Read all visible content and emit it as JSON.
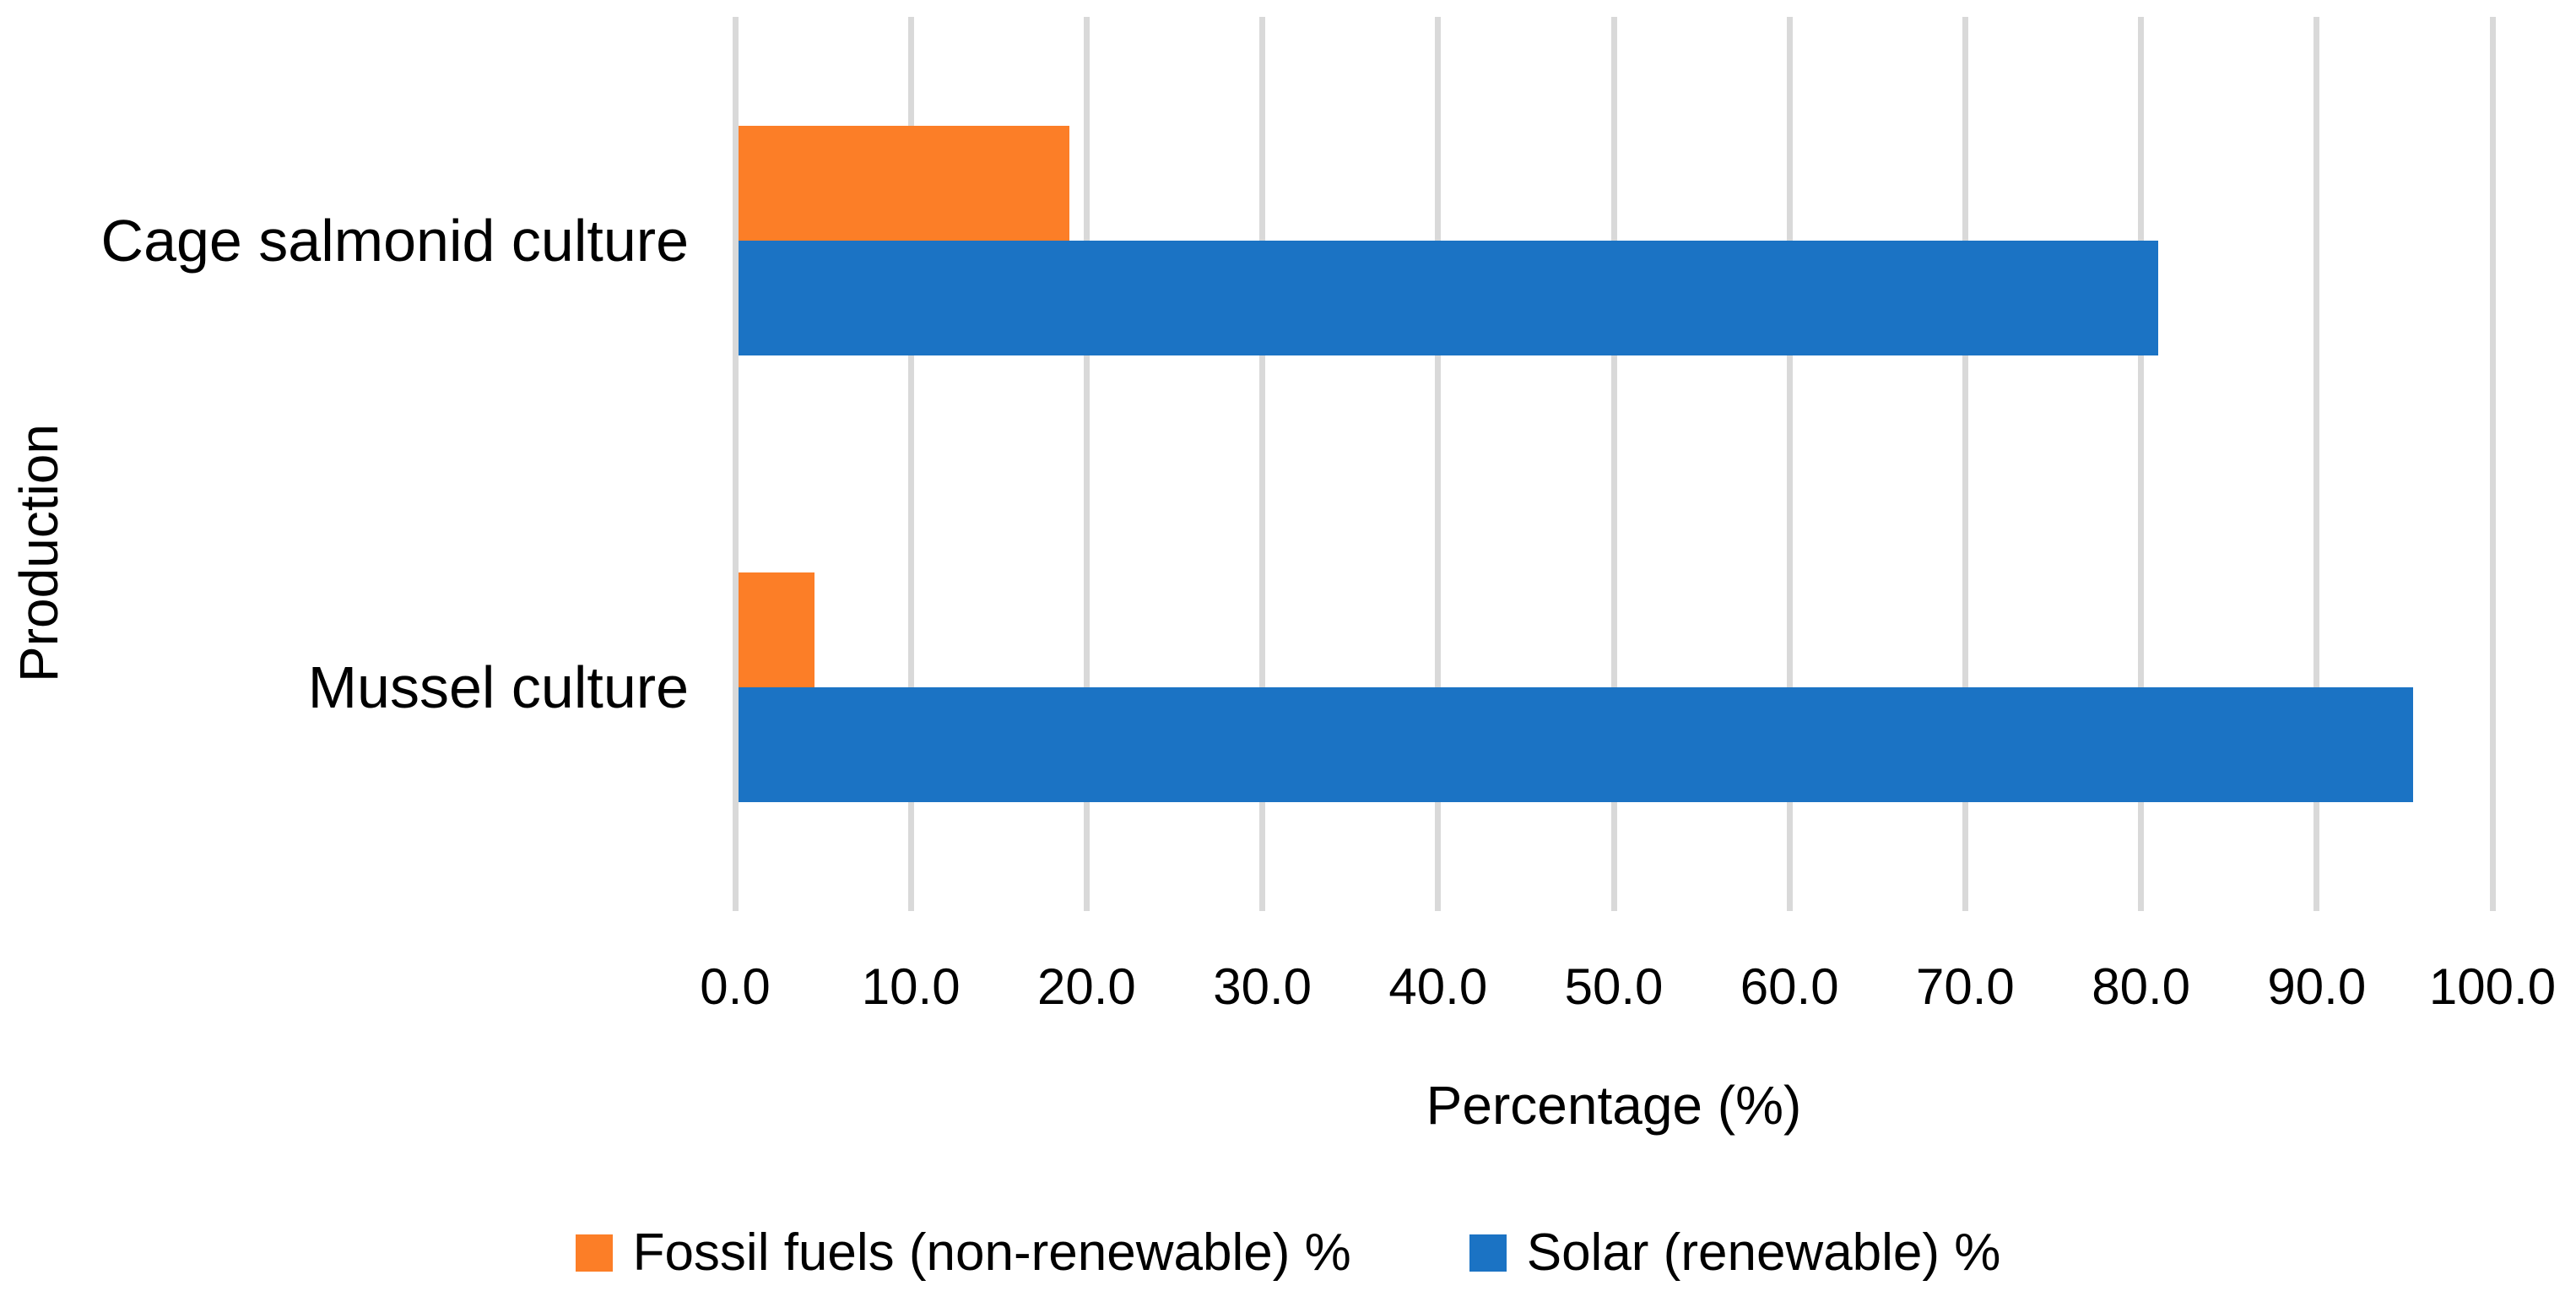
{
  "chart_data": {
    "type": "bar",
    "orientation": "horizontal",
    "title": "",
    "categories": [
      "Cage salmonid culture",
      "Mussel culture"
    ],
    "series": [
      {
        "name": "Fossil fuels (non-renewable) %",
        "color": "#FC7E27",
        "values": [
          19.0,
          4.5
        ]
      },
      {
        "name": "Solar (renewable) %",
        "color": "#1B73C4",
        "values": [
          81.0,
          95.5
        ]
      }
    ],
    "xlabel": "Percentage (%)",
    "ylabel": "Production",
    "xlim": [
      0,
      100
    ],
    "xtick_step": 10,
    "xticks": [
      "0.0",
      "10.0",
      "20.0",
      "30.0",
      "40.0",
      "50.0",
      "60.0",
      "70.0",
      "80.0",
      "90.0",
      "100.0"
    ],
    "grid": true,
    "gridline_color": "#D9D9D9",
    "background_color": "#FFFFFF",
    "text_color": "#000000",
    "legend_position": "bottom"
  }
}
